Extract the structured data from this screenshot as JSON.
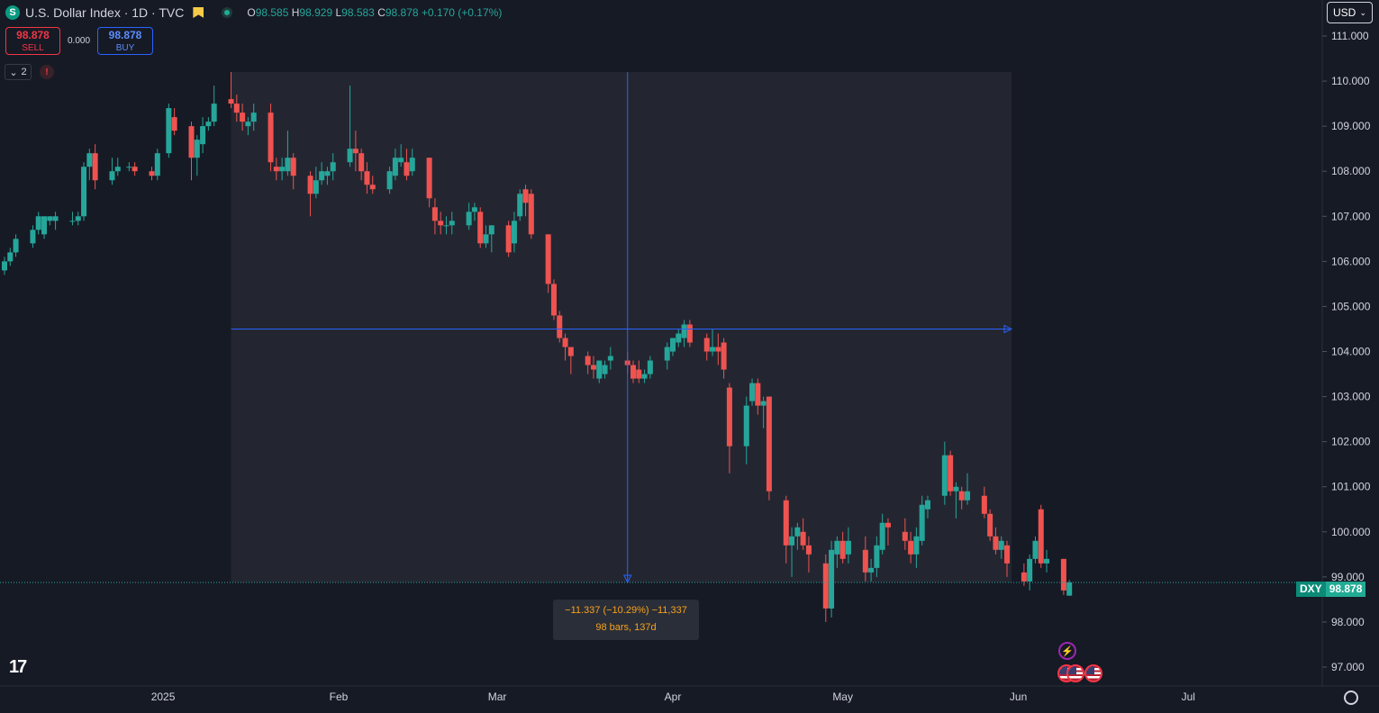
{
  "header": {
    "symbol_badge": "S",
    "title": "U.S. Dollar Index · 1D · TVC",
    "ohlc": {
      "o_label": "O",
      "o": "98.585",
      "h_label": "H",
      "h": "98.929",
      "l_label": "L",
      "l": "98.583",
      "c_label": "C",
      "c": "98.878",
      "change": "+0.170 (+0.17%)"
    }
  },
  "trade": {
    "sell_price": "98.878",
    "sell_label": "SELL",
    "spread": "0.000",
    "buy_price": "98.878",
    "buy_label": "BUY"
  },
  "indicators": {
    "count": "2",
    "warning": "!"
  },
  "currency": "USD",
  "measure": {
    "line1": "−11.337 (−10.29%) −11,337",
    "line2": "98 bars, 137d",
    "start_date": "2025-01-13",
    "end_date": "2025-05-30",
    "start_price": 110.2,
    "end_price": 98.878,
    "crosshair_date": "2025-03-24",
    "crosshair_price": 104.5
  },
  "last_price_label": {
    "symbol": "DXY",
    "price": "98.878",
    "price_value": 98.878
  },
  "events": {
    "icons": [
      "lightning-icon",
      "us-flag-icon",
      "us-flag-icon",
      "us-flag-icon"
    ]
  },
  "colors": {
    "up": "#26a69a",
    "down": "#ef5350",
    "background": "#161a25",
    "measure_fill": "#232631",
    "crosshair": "#2962ff",
    "text": "#d1d4dc"
  },
  "chart_data": {
    "type": "candlestick",
    "title": "U.S. Dollar Index · 1D · TVC",
    "y_ticks": [
      97,
      98,
      99,
      100,
      101,
      102,
      103,
      104,
      105,
      106,
      107,
      108,
      109,
      110,
      111
    ],
    "y_tick_labels": [
      "97.000",
      "98.000",
      "99.000",
      "100.000",
      "101.000",
      "102.000",
      "103.000",
      "104.000",
      "105.000",
      "106.000",
      "107.000",
      "108.000",
      "109.000",
      "110.000",
      "111.000"
    ],
    "ylim": [
      96.8,
      111.2
    ],
    "x_ticks": [
      {
        "date": "2025-01-01",
        "label": "2025"
      },
      {
        "date": "2025-02-01",
        "label": "Feb"
      },
      {
        "date": "2025-03-01",
        "label": "Mar"
      },
      {
        "date": "2025-04-01",
        "label": "Apr"
      },
      {
        "date": "2025-05-01",
        "label": "May"
      },
      {
        "date": "2025-06-01",
        "label": "Jun"
      },
      {
        "date": "2025-07-01",
        "label": "Jul"
      }
    ],
    "xlim": [
      "2024-12-04",
      "2025-07-21"
    ],
    "grid": false,
    "candles": [
      {
        "date": "2024-12-04",
        "o": 105.8,
        "h": 106.1,
        "l": 105.7,
        "c": 106.0
      },
      {
        "date": "2024-12-05",
        "o": 106.0,
        "h": 106.3,
        "l": 105.9,
        "c": 106.2
      },
      {
        "date": "2024-12-06",
        "o": 106.2,
        "h": 106.6,
        "l": 106.1,
        "c": 106.5
      },
      {
        "date": "2024-12-09",
        "o": 106.4,
        "h": 106.8,
        "l": 106.3,
        "c": 106.7
      },
      {
        "date": "2024-12-10",
        "o": 106.7,
        "h": 107.1,
        "l": 106.6,
        "c": 107.0
      },
      {
        "date": "2024-12-11",
        "o": 106.6,
        "h": 107.0,
        "l": 106.5,
        "c": 107.0
      },
      {
        "date": "2024-12-12",
        "o": 106.9,
        "h": 107.0,
        "l": 106.8,
        "c": 107.0
      },
      {
        "date": "2024-12-13",
        "o": 106.9,
        "h": 107.1,
        "l": 106.7,
        "c": 107.0
      },
      {
        "date": "2024-12-16",
        "o": 106.9,
        "h": 107.1,
        "l": 106.8,
        "c": 106.9
      },
      {
        "date": "2024-12-17",
        "o": 106.9,
        "h": 107.1,
        "l": 106.8,
        "c": 107.0
      },
      {
        "date": "2024-12-18",
        "o": 107.0,
        "h": 108.2,
        "l": 106.9,
        "c": 108.1
      },
      {
        "date": "2024-12-19",
        "o": 108.1,
        "h": 108.5,
        "l": 107.8,
        "c": 108.4
      },
      {
        "date": "2024-12-20",
        "o": 108.4,
        "h": 108.6,
        "l": 107.6,
        "c": 107.8
      },
      {
        "date": "2024-12-23",
        "o": 107.8,
        "h": 108.3,
        "l": 107.7,
        "c": 108.0
      },
      {
        "date": "2024-12-24",
        "o": 108.0,
        "h": 108.3,
        "l": 107.9,
        "c": 108.1
      },
      {
        "date": "2024-12-26",
        "o": 108.1,
        "h": 108.2,
        "l": 108.0,
        "c": 108.1
      },
      {
        "date": "2024-12-27",
        "o": 108.1,
        "h": 108.2,
        "l": 107.9,
        "c": 108.0
      },
      {
        "date": "2024-12-30",
        "o": 108.0,
        "h": 108.1,
        "l": 107.8,
        "c": 107.9
      },
      {
        "date": "2024-12-31",
        "o": 107.9,
        "h": 108.5,
        "l": 107.8,
        "c": 108.4
      },
      {
        "date": "2025-01-02",
        "o": 108.4,
        "h": 109.5,
        "l": 108.3,
        "c": 109.4
      },
      {
        "date": "2025-01-03",
        "o": 109.2,
        "h": 109.4,
        "l": 108.8,
        "c": 108.9
      },
      {
        "date": "2025-01-06",
        "o": 109.0,
        "h": 109.1,
        "l": 107.8,
        "c": 108.3
      },
      {
        "date": "2025-01-07",
        "o": 108.3,
        "h": 108.8,
        "l": 107.9,
        "c": 108.7
      },
      {
        "date": "2025-01-08",
        "o": 108.6,
        "h": 109.2,
        "l": 108.4,
        "c": 109.0
      },
      {
        "date": "2025-01-09",
        "o": 109.0,
        "h": 109.2,
        "l": 108.9,
        "c": 109.1
      },
      {
        "date": "2025-01-10",
        "o": 109.1,
        "h": 109.9,
        "l": 109.0,
        "c": 109.5
      },
      {
        "date": "2025-01-13",
        "o": 109.6,
        "h": 110.2,
        "l": 109.4,
        "c": 109.5
      },
      {
        "date": "2025-01-14",
        "o": 109.5,
        "h": 109.7,
        "l": 109.1,
        "c": 109.3
      },
      {
        "date": "2025-01-15",
        "o": 109.3,
        "h": 109.5,
        "l": 108.9,
        "c": 109.1
      },
      {
        "date": "2025-01-16",
        "o": 109.0,
        "h": 109.2,
        "l": 108.8,
        "c": 109.1
      },
      {
        "date": "2025-01-17",
        "o": 109.1,
        "h": 109.5,
        "l": 108.9,
        "c": 109.3
      },
      {
        "date": "2025-01-20",
        "o": 109.3,
        "h": 109.5,
        "l": 108.0,
        "c": 108.2
      },
      {
        "date": "2025-01-21",
        "o": 108.1,
        "h": 108.3,
        "l": 107.8,
        "c": 108.0
      },
      {
        "date": "2025-01-22",
        "o": 108.0,
        "h": 108.3,
        "l": 107.8,
        "c": 108.1
      },
      {
        "date": "2025-01-23",
        "o": 108.0,
        "h": 108.9,
        "l": 107.9,
        "c": 108.3
      },
      {
        "date": "2025-01-24",
        "o": 108.3,
        "h": 108.4,
        "l": 107.6,
        "c": 107.9
      },
      {
        "date": "2025-01-27",
        "o": 107.9,
        "h": 108.0,
        "l": 107.0,
        "c": 107.5
      },
      {
        "date": "2025-01-28",
        "o": 107.5,
        "h": 108.1,
        "l": 107.4,
        "c": 107.8
      },
      {
        "date": "2025-01-29",
        "o": 107.8,
        "h": 108.2,
        "l": 107.7,
        "c": 108.0
      },
      {
        "date": "2025-01-30",
        "o": 107.9,
        "h": 108.1,
        "l": 107.7,
        "c": 108.0
      },
      {
        "date": "2025-01-31",
        "o": 108.0,
        "h": 108.4,
        "l": 107.8,
        "c": 108.2
      },
      {
        "date": "2025-02-03",
        "o": 108.2,
        "h": 109.9,
        "l": 108.1,
        "c": 108.5
      },
      {
        "date": "2025-02-04",
        "o": 108.5,
        "h": 108.9,
        "l": 108.0,
        "c": 108.4
      },
      {
        "date": "2025-02-05",
        "o": 108.4,
        "h": 108.5,
        "l": 107.8,
        "c": 108.0
      },
      {
        "date": "2025-02-06",
        "o": 108.0,
        "h": 108.2,
        "l": 107.5,
        "c": 107.7
      },
      {
        "date": "2025-02-07",
        "o": 107.7,
        "h": 107.9,
        "l": 107.5,
        "c": 107.6
      },
      {
        "date": "2025-02-10",
        "o": 107.6,
        "h": 108.1,
        "l": 107.5,
        "c": 108.0
      },
      {
        "date": "2025-02-11",
        "o": 107.9,
        "h": 108.5,
        "l": 107.8,
        "c": 108.3
      },
      {
        "date": "2025-02-12",
        "o": 108.2,
        "h": 108.6,
        "l": 108.1,
        "c": 108.3
      },
      {
        "date": "2025-02-13",
        "o": 108.2,
        "h": 108.5,
        "l": 107.8,
        "c": 107.9
      },
      {
        "date": "2025-02-14",
        "o": 108.0,
        "h": 108.5,
        "l": 107.9,
        "c": 108.3
      },
      {
        "date": "2025-02-17",
        "o": 108.3,
        "h": 108.3,
        "l": 107.2,
        "c": 107.4
      },
      {
        "date": "2025-02-18",
        "o": 107.2,
        "h": 107.4,
        "l": 106.6,
        "c": 106.9
      },
      {
        "date": "2025-02-19",
        "o": 106.9,
        "h": 107.1,
        "l": 106.6,
        "c": 106.8
      },
      {
        "date": "2025-02-20",
        "o": 106.8,
        "h": 107.0,
        "l": 106.6,
        "c": 106.8
      },
      {
        "date": "2025-02-21",
        "o": 106.8,
        "h": 107.1,
        "l": 106.6,
        "c": 106.9
      },
      {
        "date": "2025-02-24",
        "o": 106.8,
        "h": 107.3,
        "l": 106.7,
        "c": 107.1
      },
      {
        "date": "2025-02-25",
        "o": 107.1,
        "h": 107.3,
        "l": 106.9,
        "c": 107.2
      },
      {
        "date": "2025-02-26",
        "o": 107.1,
        "h": 107.2,
        "l": 106.3,
        "c": 106.4
      },
      {
        "date": "2025-02-27",
        "o": 106.4,
        "h": 106.8,
        "l": 106.3,
        "c": 106.6
      },
      {
        "date": "2025-02-28",
        "o": 106.6,
        "h": 106.8,
        "l": 106.2,
        "c": 106.8
      },
      {
        "date": "2025-03-03",
        "o": 106.8,
        "h": 106.9,
        "l": 106.1,
        "c": 106.2
      },
      {
        "date": "2025-03-04",
        "o": 106.4,
        "h": 107.1,
        "l": 106.2,
        "c": 106.9
      },
      {
        "date": "2025-03-05",
        "o": 107.0,
        "h": 107.6,
        "l": 106.9,
        "c": 107.5
      },
      {
        "date": "2025-03-06",
        "o": 107.6,
        "h": 107.7,
        "l": 107.0,
        "c": 107.3
      },
      {
        "date": "2025-03-07",
        "o": 107.5,
        "h": 107.6,
        "l": 106.5,
        "c": 106.6
      },
      {
        "date": "2025-03-10",
        "o": 106.6,
        "h": 106.6,
        "l": 105.3,
        "c": 105.5
      },
      {
        "date": "2025-03-11",
        "o": 105.5,
        "h": 105.6,
        "l": 104.7,
        "c": 104.8
      },
      {
        "date": "2025-03-12",
        "o": 104.8,
        "h": 104.9,
        "l": 104.2,
        "c": 104.3
      },
      {
        "date": "2025-03-13",
        "o": 104.3,
        "h": 104.4,
        "l": 103.8,
        "c": 104.1
      },
      {
        "date": "2025-03-14",
        "o": 104.1,
        "h": 104.1,
        "l": 103.5,
        "c": 103.9
      },
      {
        "date": "2025-03-17",
        "o": 103.9,
        "h": 104.0,
        "l": 103.5,
        "c": 103.7
      },
      {
        "date": "2025-03-18",
        "o": 103.7,
        "h": 103.9,
        "l": 103.4,
        "c": 103.6
      },
      {
        "date": "2025-03-19",
        "o": 103.4,
        "h": 103.8,
        "l": 103.3,
        "c": 103.8
      },
      {
        "date": "2025-03-20",
        "o": 103.5,
        "h": 103.8,
        "l": 103.4,
        "c": 103.7
      },
      {
        "date": "2025-03-21",
        "o": 103.8,
        "h": 104.1,
        "l": 103.6,
        "c": 103.9
      },
      {
        "date": "2025-03-24",
        "o": 103.8,
        "h": 104.0,
        "l": 103.5,
        "c": 103.7
      },
      {
        "date": "2025-03-25",
        "o": 103.7,
        "h": 103.8,
        "l": 103.3,
        "c": 103.4
      },
      {
        "date": "2025-03-26",
        "o": 103.6,
        "h": 103.8,
        "l": 103.3,
        "c": 103.4
      },
      {
        "date": "2025-03-27",
        "o": 103.4,
        "h": 103.6,
        "l": 103.3,
        "c": 103.5
      },
      {
        "date": "2025-03-28",
        "o": 103.5,
        "h": 103.9,
        "l": 103.4,
        "c": 103.8
      },
      {
        "date": "2025-03-31",
        "o": 103.8,
        "h": 104.2,
        "l": 103.6,
        "c": 104.1
      },
      {
        "date": "2025-04-01",
        "o": 104.0,
        "h": 104.3,
        "l": 103.9,
        "c": 104.3
      },
      {
        "date": "2025-04-02",
        "o": 104.2,
        "h": 104.5,
        "l": 104.1,
        "c": 104.4
      },
      {
        "date": "2025-04-03",
        "o": 104.3,
        "h": 104.7,
        "l": 104.1,
        "c": 104.6
      },
      {
        "date": "2025-04-04",
        "o": 104.6,
        "h": 104.7,
        "l": 104.1,
        "c": 104.2
      },
      {
        "date": "2025-04-07",
        "o": 104.3,
        "h": 104.4,
        "l": 103.8,
        "c": 104.0
      },
      {
        "date": "2025-04-08",
        "o": 104.0,
        "h": 104.5,
        "l": 103.9,
        "c": 104.1
      },
      {
        "date": "2025-04-09",
        "o": 104.1,
        "h": 104.4,
        "l": 103.7,
        "c": 104.0
      },
      {
        "date": "2025-04-10",
        "o": 104.2,
        "h": 104.3,
        "l": 103.4,
        "c": 103.6
      },
      {
        "date": "2025-04-11",
        "o": 103.2,
        "h": 103.3,
        "l": 101.3,
        "c": 101.9
      },
      {
        "date": "2025-04-14",
        "o": 101.9,
        "h": 103.0,
        "l": 101.5,
        "c": 102.8
      },
      {
        "date": "2025-04-15",
        "o": 102.9,
        "h": 103.4,
        "l": 102.8,
        "c": 103.3
      },
      {
        "date": "2025-04-16",
        "o": 103.3,
        "h": 103.4,
        "l": 102.6,
        "c": 102.8
      },
      {
        "date": "2025-04-17",
        "o": 102.8,
        "h": 103.0,
        "l": 102.3,
        "c": 102.9
      },
      {
        "date": "2025-04-18",
        "o": 103.0,
        "h": 103.0,
        "l": 100.7,
        "c": 100.9
      },
      {
        "date": "2025-04-21",
        "o": 100.7,
        "h": 100.8,
        "l": 99.3,
        "c": 99.7
      },
      {
        "date": "2025-04-22",
        "o": 99.7,
        "h": 100.1,
        "l": 99.0,
        "c": 99.9
      },
      {
        "date": "2025-04-23",
        "o": 99.9,
        "h": 100.2,
        "l": 99.6,
        "c": 100.1
      },
      {
        "date": "2025-04-24",
        "o": 100.0,
        "h": 100.3,
        "l": 99.6,
        "c": 99.7
      },
      {
        "date": "2025-04-25",
        "o": 99.7,
        "h": 99.9,
        "l": 99.1,
        "c": 99.5
      },
      {
        "date": "2025-04-28",
        "o": 99.3,
        "h": 99.5,
        "l": 98.0,
        "c": 98.3
      },
      {
        "date": "2025-04-29",
        "o": 98.3,
        "h": 99.8,
        "l": 98.1,
        "c": 99.6
      },
      {
        "date": "2025-04-30",
        "o": 99.5,
        "h": 99.9,
        "l": 99.2,
        "c": 99.8
      },
      {
        "date": "2025-05-01",
        "o": 99.8,
        "h": 100.0,
        "l": 99.3,
        "c": 99.4
      },
      {
        "date": "2025-05-02",
        "o": 99.5,
        "h": 100.1,
        "l": 99.3,
        "c": 99.8
      },
      {
        "date": "2025-05-05",
        "o": 99.6,
        "h": 99.9,
        "l": 98.9,
        "c": 99.1
      },
      {
        "date": "2025-05-06",
        "o": 99.1,
        "h": 99.4,
        "l": 98.9,
        "c": 99.2
      },
      {
        "date": "2025-05-07",
        "o": 99.2,
        "h": 99.9,
        "l": 99.0,
        "c": 99.7
      },
      {
        "date": "2025-05-08",
        "o": 99.6,
        "h": 100.4,
        "l": 99.5,
        "c": 100.2
      },
      {
        "date": "2025-05-09",
        "o": 100.2,
        "h": 100.3,
        "l": 99.7,
        "c": 100.1
      },
      {
        "date": "2025-05-12",
        "o": 100.0,
        "h": 100.3,
        "l": 99.6,
        "c": 99.8
      },
      {
        "date": "2025-05-13",
        "o": 99.8,
        "h": 100.0,
        "l": 99.3,
        "c": 99.5
      },
      {
        "date": "2025-05-14",
        "o": 99.5,
        "h": 100.1,
        "l": 99.2,
        "c": 99.9
      },
      {
        "date": "2025-05-15",
        "o": 99.8,
        "h": 100.8,
        "l": 99.7,
        "c": 100.6
      },
      {
        "date": "2025-05-16",
        "o": 100.5,
        "h": 100.8,
        "l": 100.3,
        "c": 100.7
      },
      {
        "date": "2025-05-19",
        "o": 100.8,
        "h": 102.0,
        "l": 100.6,
        "c": 101.7
      },
      {
        "date": "2025-05-20",
        "o": 101.7,
        "h": 101.8,
        "l": 100.8,
        "c": 100.9
      },
      {
        "date": "2025-05-21",
        "o": 100.9,
        "h": 101.1,
        "l": 100.3,
        "c": 101.0
      },
      {
        "date": "2025-05-22",
        "o": 100.9,
        "h": 101.0,
        "l": 100.5,
        "c": 100.7
      },
      {
        "date": "2025-05-23",
        "o": 100.7,
        "h": 101.3,
        "l": 100.6,
        "c": 100.9
      },
      {
        "date": "2025-05-26",
        "o": 100.8,
        "h": 101.0,
        "l": 100.3,
        "c": 100.4
      },
      {
        "date": "2025-05-27",
        "o": 100.4,
        "h": 100.5,
        "l": 99.8,
        "c": 99.9
      },
      {
        "date": "2025-05-28",
        "o": 99.9,
        "h": 100.1,
        "l": 99.5,
        "c": 99.6
      },
      {
        "date": "2025-05-29",
        "o": 99.6,
        "h": 99.9,
        "l": 99.4,
        "c": 99.8
      },
      {
        "date": "2025-05-30",
        "o": 99.7,
        "h": 99.8,
        "l": 99.0,
        "c": 99.3
      },
      {
        "date": "2025-06-02",
        "o": 99.1,
        "h": 99.3,
        "l": 98.8,
        "c": 98.9
      },
      {
        "date": "2025-06-03",
        "o": 98.9,
        "h": 99.5,
        "l": 98.7,
        "c": 99.4
      },
      {
        "date": "2025-06-04",
        "o": 99.4,
        "h": 99.9,
        "l": 99.3,
        "c": 99.8
      },
      {
        "date": "2025-06-05",
        "o": 100.5,
        "h": 100.6,
        "l": 99.2,
        "c": 99.3
      },
      {
        "date": "2025-06-06",
        "o": 99.3,
        "h": 99.6,
        "l": 99.1,
        "c": 99.4
      },
      {
        "date": "2025-06-09",
        "o": 99.4,
        "h": 99.4,
        "l": 98.6,
        "c": 98.7
      },
      {
        "date": "2025-06-10",
        "o": 98.585,
        "h": 98.929,
        "l": 98.583,
        "c": 98.878
      }
    ]
  }
}
